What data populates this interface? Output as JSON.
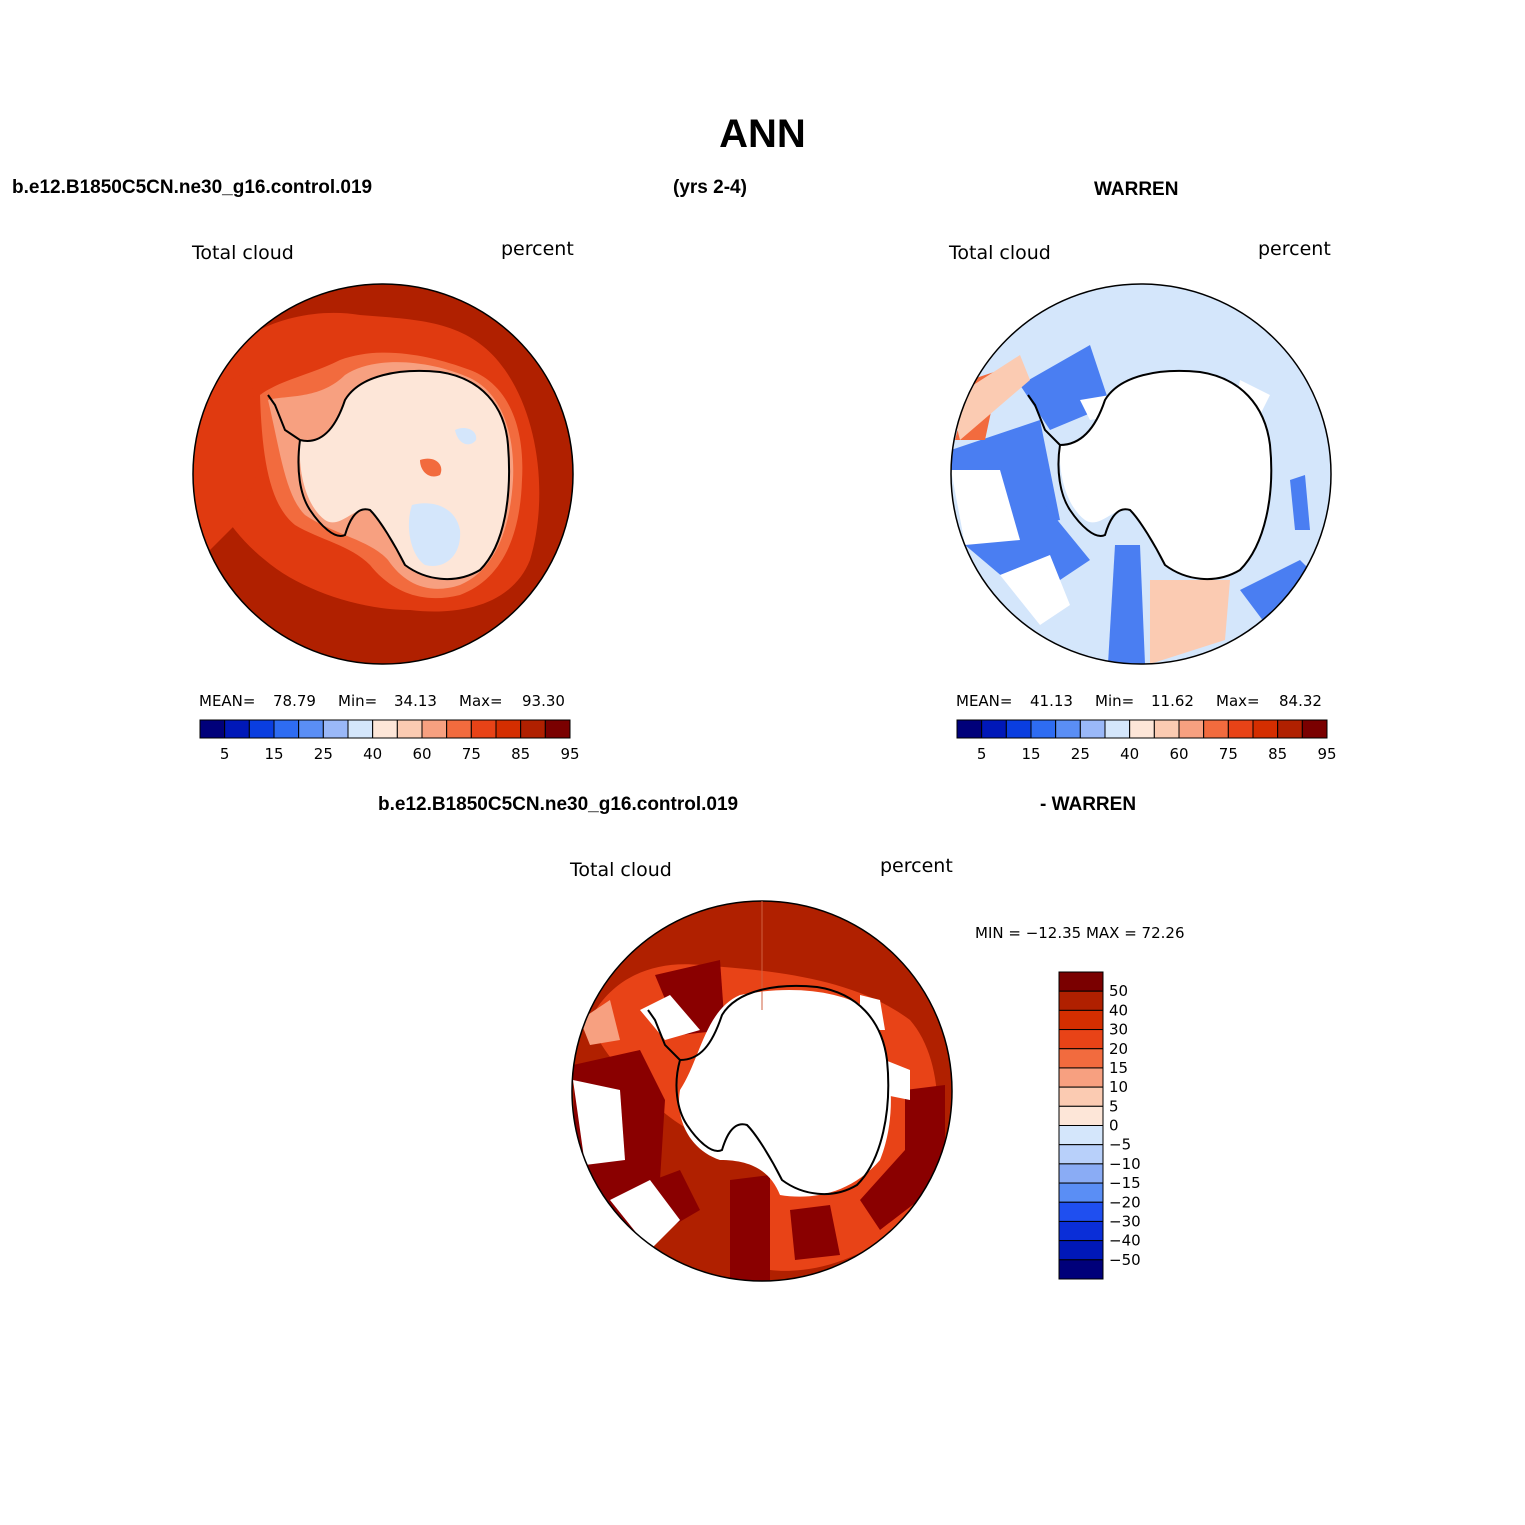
{
  "title": "ANN",
  "header": {
    "case_name": "b.e12.B1850C5CN.ne30_g16.control.019",
    "years": "(yrs 2-4)",
    "obs_name": "WARREN",
    "diff_case_name": "b.e12.B1850C5CN.ne30_g16.control.019",
    "diff_obs_name": "- WARREN"
  },
  "panels": {
    "model": {
      "variable": "Total cloud",
      "units": "percent",
      "mean_label": "MEAN=",
      "mean_value": "78.79",
      "min_label": "Min=",
      "min_value": "34.13",
      "max_label": "Max=",
      "max_value": "93.30"
    },
    "obs": {
      "variable": "Total cloud",
      "units": "percent",
      "mean_label": "MEAN=",
      "mean_value": "41.13",
      "min_label": "Min=",
      "min_value": "11.62",
      "max_label": "Max=",
      "max_value": "84.32"
    },
    "diff": {
      "variable": "Total cloud",
      "units": "percent",
      "minmax_text": "MIN = −12.35 MAX =  72.26"
    }
  },
  "colorbars": {
    "field": {
      "colors": [
        "#00007a",
        "#0018b8",
        "#0a3ee0",
        "#2e6cf2",
        "#5a8ef5",
        "#9ab8f8",
        "#d4e6fb",
        "#fde6d8",
        "#fbcbb2",
        "#f7a080",
        "#f26b3e",
        "#e84317",
        "#d42e00",
        "#b02000",
        "#7a0000"
      ],
      "tick_labels": [
        "5",
        "15",
        "25",
        "40",
        "60",
        "75",
        "85",
        "95"
      ]
    },
    "diff": {
      "colors": [
        "#7a0000",
        "#b02000",
        "#d42e00",
        "#e84317",
        "#f26b3e",
        "#f7a080",
        "#fbcbb2",
        "#fde6d8",
        "#d4e6fb",
        "#b8d0fa",
        "#8aacf5",
        "#5a8ef5",
        "#1f4ff0",
        "#0a2ed8",
        "#0018b8",
        "#00007a"
      ],
      "labels": [
        "50",
        "40",
        "30",
        "20",
        "15",
        "10",
        "5",
        "0",
        "−5",
        "−10",
        "−15",
        "−20",
        "−30",
        "−40",
        "−50"
      ]
    }
  },
  "map_colors": {
    "model_ocean_outer": "#b02000",
    "model_ocean_mid": "#e03a10",
    "model_ocean_inner": "#f26b3e",
    "model_coast": "#f7a080",
    "model_land": "#fde6d8",
    "model_land_blue": "#d4e6fb",
    "obs_base": "#d4e6fb",
    "obs_blue": "#4a7ef2",
    "obs_red": "#f26b3e",
    "obs_pink": "#fbcbb2",
    "diff_outer": "#b02000",
    "diff_dark": "#8a0000",
    "diff_mid": "#e84317",
    "coastline": "#000000"
  }
}
